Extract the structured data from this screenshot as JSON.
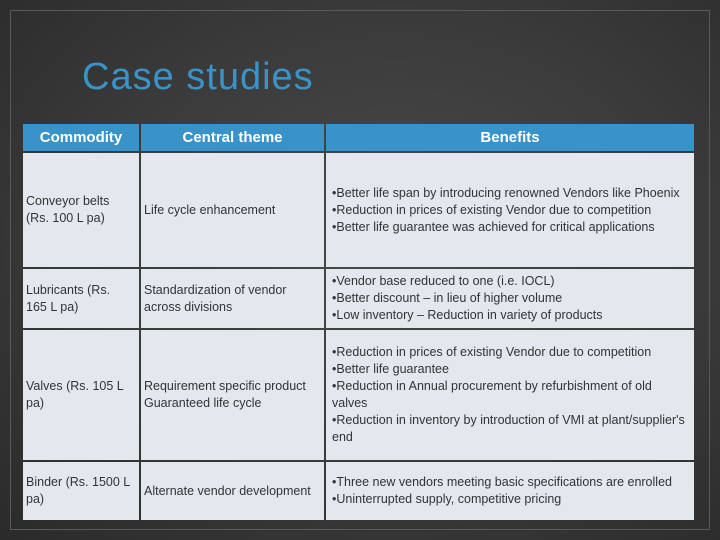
{
  "title": "Case studies",
  "table": {
    "headers": [
      "Commodity",
      "Central theme",
      "Benefits"
    ],
    "rows": [
      {
        "commodity": "Conveyor belts (Rs. 100 L pa)",
        "theme": [
          "Life cycle enhancement"
        ],
        "benefits": [
          "•Better life span by introducing renowned Vendors like Phoenix",
          "•Reduction in prices of existing Vendor due to competition",
          "•Better life guarantee was achieved for critical applications"
        ]
      },
      {
        "commodity": "Lubricants (Rs. 165 L pa)",
        "theme": [
          "Standardization of vendor across divisions"
        ],
        "benefits": [
          "•Vendor base reduced to one (i.e. IOCL)",
          "•Better discount – in lieu of higher volume",
          "•Low inventory – Reduction in variety of products"
        ]
      },
      {
        "commodity": "Valves (Rs. 105 L pa)",
        "theme": [
          "Requirement specific product",
          "Guaranteed life cycle"
        ],
        "benefits": [
          "•Reduction in prices of existing Vendor due to competition",
          "•Better life guarantee",
          "•Reduction in Annual procurement by refurbishment of old valves",
          "•Reduction in inventory by introduction of VMI at plant/supplier's end"
        ]
      },
      {
        "commodity": "Binder (Rs. 1500 L pa)",
        "theme": [
          "Alternate vendor development"
        ],
        "benefits": [
          "•Three new vendors meeting basic specifications are enrolled",
          "•Uninterrupted supply, competitive pricing"
        ]
      }
    ]
  }
}
